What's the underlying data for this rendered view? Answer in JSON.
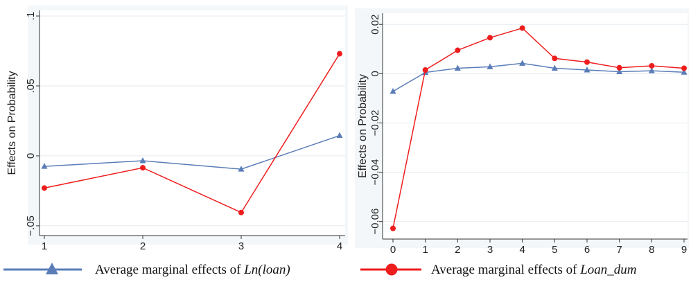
{
  "colors": {
    "blue": "#5a7db8",
    "red": "#ee1d1d",
    "grid": "#e8eef2",
    "panelBg": "#f4f7f9"
  },
  "legend": [
    {
      "marker": "triangle",
      "color": "#5a7db8",
      "text": "Average marginal effects of ",
      "emph": "Ln(loan)"
    },
    {
      "marker": "circle",
      "color": "#ee1d1d",
      "text": "Average marginal effects of ",
      "emph": "Loan_dum"
    }
  ],
  "chart_data": [
    {
      "type": "line",
      "title": "",
      "xlabel": "",
      "ylabel": "Effects on Probability",
      "x": [
        1,
        2,
        3,
        4
      ],
      "xticks": [
        "1",
        "2",
        "3",
        "4"
      ],
      "xlim": [
        1,
        4
      ],
      "yticks": [
        -0.05,
        0,
        0.05,
        0.1
      ],
      "ytick_labels": [
        "−.05",
        "0",
        ".05",
        ".1"
      ],
      "ylim": [
        -0.055,
        0.103
      ],
      "grid": true,
      "series": [
        {
          "name": "Ln(loan)",
          "color": "#5a7db8",
          "marker": "triangle",
          "values": [
            -0.0075,
            -0.0035,
            -0.0095,
            0.0145
          ]
        },
        {
          "name": "Loan_dum",
          "color": "#ee1d1d",
          "marker": "circle",
          "values": [
            -0.023,
            -0.0085,
            -0.0405,
            0.073
          ]
        }
      ]
    },
    {
      "type": "line",
      "title": "",
      "xlabel": "",
      "ylabel": "Effects on Probability",
      "x": [
        0,
        1,
        2,
        3,
        4,
        5,
        6,
        7,
        8,
        9
      ],
      "xticks": [
        "0",
        "1",
        "2",
        "3",
        "4",
        "5",
        "6",
        "7",
        "8",
        "9"
      ],
      "xlim": [
        0,
        9
      ],
      "yticks": [
        -0.06,
        -0.04,
        -0.02,
        0,
        0.02
      ],
      "ytick_labels": [
        "−0.06",
        "−0.04",
        "−0.02",
        "0",
        "0.02"
      ],
      "ylim": [
        -0.066,
        0.024
      ],
      "grid": true,
      "series": [
        {
          "name": "Ln(loan)",
          "color": "#5a7db8",
          "marker": "triangle",
          "values": [
            -0.0072,
            0.0005,
            0.0022,
            0.0028,
            0.0042,
            0.0022,
            0.0015,
            0.0008,
            0.0012,
            0.0006
          ]
        },
        {
          "name": "Loan_dum",
          "color": "#ee1d1d",
          "marker": "circle",
          "values": [
            -0.0628,
            0.0015,
            0.0095,
            0.0146,
            0.0185,
            0.0062,
            0.0047,
            0.0024,
            0.0032,
            0.0022
          ]
        }
      ]
    }
  ]
}
